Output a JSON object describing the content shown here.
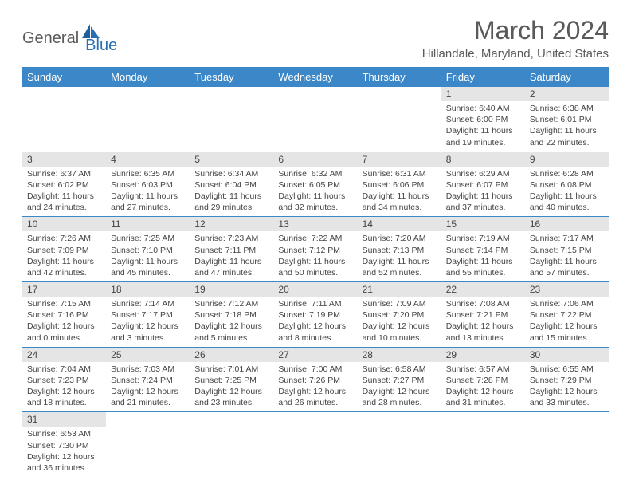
{
  "logo": {
    "text1": "General",
    "text2": "Blue"
  },
  "title": "March 2024",
  "location": "Hillandale, Maryland, United States",
  "colors": {
    "header_bg": "#3b87c8",
    "header_fg": "#ffffff",
    "daynum_bg": "#e5e5e5",
    "rule": "#3b87c8",
    "text": "#444444",
    "logo_gray": "#5a5a5a",
    "logo_blue": "#2a6fb5"
  },
  "weekdays": [
    "Sunday",
    "Monday",
    "Tuesday",
    "Wednesday",
    "Thursday",
    "Friday",
    "Saturday"
  ],
  "weeks": [
    [
      null,
      null,
      null,
      null,
      null,
      {
        "n": "1",
        "sr": "6:40 AM",
        "ss": "6:00 PM",
        "dl": "11 hours and 19 minutes."
      },
      {
        "n": "2",
        "sr": "6:38 AM",
        "ss": "6:01 PM",
        "dl": "11 hours and 22 minutes."
      }
    ],
    [
      {
        "n": "3",
        "sr": "6:37 AM",
        "ss": "6:02 PM",
        "dl": "11 hours and 24 minutes."
      },
      {
        "n": "4",
        "sr": "6:35 AM",
        "ss": "6:03 PM",
        "dl": "11 hours and 27 minutes."
      },
      {
        "n": "5",
        "sr": "6:34 AM",
        "ss": "6:04 PM",
        "dl": "11 hours and 29 minutes."
      },
      {
        "n": "6",
        "sr": "6:32 AM",
        "ss": "6:05 PM",
        "dl": "11 hours and 32 minutes."
      },
      {
        "n": "7",
        "sr": "6:31 AM",
        "ss": "6:06 PM",
        "dl": "11 hours and 34 minutes."
      },
      {
        "n": "8",
        "sr": "6:29 AM",
        "ss": "6:07 PM",
        "dl": "11 hours and 37 minutes."
      },
      {
        "n": "9",
        "sr": "6:28 AM",
        "ss": "6:08 PM",
        "dl": "11 hours and 40 minutes."
      }
    ],
    [
      {
        "n": "10",
        "sr": "7:26 AM",
        "ss": "7:09 PM",
        "dl": "11 hours and 42 minutes."
      },
      {
        "n": "11",
        "sr": "7:25 AM",
        "ss": "7:10 PM",
        "dl": "11 hours and 45 minutes."
      },
      {
        "n": "12",
        "sr": "7:23 AM",
        "ss": "7:11 PM",
        "dl": "11 hours and 47 minutes."
      },
      {
        "n": "13",
        "sr": "7:22 AM",
        "ss": "7:12 PM",
        "dl": "11 hours and 50 minutes."
      },
      {
        "n": "14",
        "sr": "7:20 AM",
        "ss": "7:13 PM",
        "dl": "11 hours and 52 minutes."
      },
      {
        "n": "15",
        "sr": "7:19 AM",
        "ss": "7:14 PM",
        "dl": "11 hours and 55 minutes."
      },
      {
        "n": "16",
        "sr": "7:17 AM",
        "ss": "7:15 PM",
        "dl": "11 hours and 57 minutes."
      }
    ],
    [
      {
        "n": "17",
        "sr": "7:15 AM",
        "ss": "7:16 PM",
        "dl": "12 hours and 0 minutes."
      },
      {
        "n": "18",
        "sr": "7:14 AM",
        "ss": "7:17 PM",
        "dl": "12 hours and 3 minutes."
      },
      {
        "n": "19",
        "sr": "7:12 AM",
        "ss": "7:18 PM",
        "dl": "12 hours and 5 minutes."
      },
      {
        "n": "20",
        "sr": "7:11 AM",
        "ss": "7:19 PM",
        "dl": "12 hours and 8 minutes."
      },
      {
        "n": "21",
        "sr": "7:09 AM",
        "ss": "7:20 PM",
        "dl": "12 hours and 10 minutes."
      },
      {
        "n": "22",
        "sr": "7:08 AM",
        "ss": "7:21 PM",
        "dl": "12 hours and 13 minutes."
      },
      {
        "n": "23",
        "sr": "7:06 AM",
        "ss": "7:22 PM",
        "dl": "12 hours and 15 minutes."
      }
    ],
    [
      {
        "n": "24",
        "sr": "7:04 AM",
        "ss": "7:23 PM",
        "dl": "12 hours and 18 minutes."
      },
      {
        "n": "25",
        "sr": "7:03 AM",
        "ss": "7:24 PM",
        "dl": "12 hours and 21 minutes."
      },
      {
        "n": "26",
        "sr": "7:01 AM",
        "ss": "7:25 PM",
        "dl": "12 hours and 23 minutes."
      },
      {
        "n": "27",
        "sr": "7:00 AM",
        "ss": "7:26 PM",
        "dl": "12 hours and 26 minutes."
      },
      {
        "n": "28",
        "sr": "6:58 AM",
        "ss": "7:27 PM",
        "dl": "12 hours and 28 minutes."
      },
      {
        "n": "29",
        "sr": "6:57 AM",
        "ss": "7:28 PM",
        "dl": "12 hours and 31 minutes."
      },
      {
        "n": "30",
        "sr": "6:55 AM",
        "ss": "7:29 PM",
        "dl": "12 hours and 33 minutes."
      }
    ],
    [
      {
        "n": "31",
        "sr": "6:53 AM",
        "ss": "7:30 PM",
        "dl": "12 hours and 36 minutes."
      },
      null,
      null,
      null,
      null,
      null,
      null
    ]
  ],
  "labels": {
    "sunrise": "Sunrise:",
    "sunset": "Sunset:",
    "daylight": "Daylight:"
  }
}
